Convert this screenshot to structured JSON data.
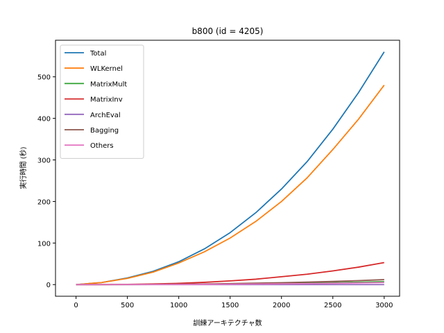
{
  "chart_data": {
    "type": "line",
    "title": "b800 (id = 4205)",
    "xlabel": "訓練アーキテクチャ数",
    "ylabel": "実行時間 (秒)",
    "xlim": [
      -200,
      3150
    ],
    "ylim": [
      -28,
      588
    ],
    "xticks": [
      0,
      500,
      1000,
      1500,
      2000,
      2500,
      3000
    ],
    "yticks": [
      0,
      100,
      200,
      300,
      400,
      500
    ],
    "grid": false,
    "legend_position": "upper-left",
    "x": [
      0,
      250,
      500,
      750,
      1000,
      1250,
      1500,
      1750,
      2000,
      2250,
      2500,
      2750,
      3000
    ],
    "series": [
      {
        "name": "Total",
        "color": "#1f77b4",
        "values": [
          0,
          5,
          16,
          32,
          55,
          86,
          125,
          173,
          230,
          296,
          374,
          462,
          560
        ]
      },
      {
        "name": "WLKernel",
        "color": "#ff7f0e",
        "values": [
          0,
          5,
          15,
          30,
          52,
          79,
          112,
          152,
          200,
          257,
          325,
          398,
          480
        ]
      },
      {
        "name": "MatrixMult",
        "color": "#2ca02c",
        "values": [
          0,
          0,
          0,
          0.3,
          0.6,
          1.0,
          1.5,
          2.1,
          2.8,
          3.7,
          4.6,
          5.7,
          7
        ]
      },
      {
        "name": "MatrixInv",
        "color": "#d62728",
        "values": [
          0,
          0.1,
          0.5,
          1.5,
          3,
          5.5,
          9,
          13,
          19,
          25,
          33,
          42,
          53
        ]
      },
      {
        "name": "ArchEval",
        "color": "#9467bd",
        "values": [
          0,
          0,
          0,
          0,
          0,
          0,
          0,
          0,
          0,
          0,
          0,
          0,
          0
        ]
      },
      {
        "name": "Bagging",
        "color": "#8c564b",
        "values": [
          0,
          0.05,
          0.2,
          0.5,
          1,
          1.6,
          2.4,
          3.4,
          4.6,
          6,
          7.6,
          9.6,
          12
        ]
      },
      {
        "name": "Others",
        "color": "#e377c2",
        "values": [
          0,
          0.02,
          0.1,
          0.2,
          0.4,
          0.7,
          1.0,
          1.4,
          1.9,
          2.5,
          3.2,
          4.0,
          5
        ]
      }
    ]
  }
}
